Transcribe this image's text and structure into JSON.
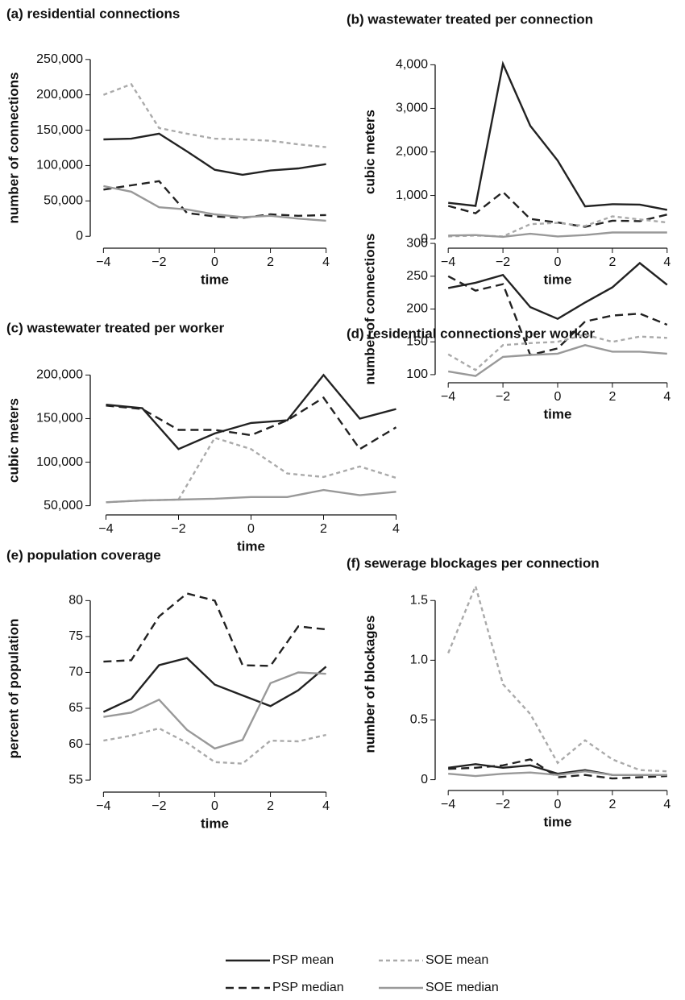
{
  "chart_data": [
    {
      "type": "line",
      "title": "(a) residential connections",
      "xlabel": "time",
      "ylabel": "number of connections",
      "x": [
        -4,
        -3,
        -2,
        -1,
        0,
        1,
        2,
        3,
        4
      ],
      "xlim": [
        -4.3,
        4.3
      ],
      "xticks": [
        {
          "value": -4,
          "label": "−4"
        },
        {
          "value": -2,
          "label": "−2"
        },
        0,
        2,
        4
      ],
      "ylim": [
        -10000,
        260000
      ],
      "yticks": [
        0,
        {
          "value": 50000,
          "label": "50,000"
        },
        {
          "value": 100000,
          "label": "100,000"
        },
        {
          "value": 150000,
          "label": "150,000"
        },
        {
          "value": 200000,
          "label": "200,000"
        },
        {
          "value": 250000,
          "label": "250,000"
        }
      ],
      "series": [
        {
          "name": "PSP mean",
          "color": "#222222",
          "linestyle": "solid",
          "values": [
            137000,
            138000,
            145000,
            120000,
            94000,
            87000,
            93000,
            96000,
            102000
          ]
        },
        {
          "name": "PSP median",
          "color": "#222222",
          "linestyle": "dashed",
          "values": [
            66000,
            72000,
            78000,
            33000,
            28000,
            26000,
            31000,
            29000,
            30000
          ]
        },
        {
          "name": "SOE mean",
          "color": "#aaaaaa",
          "linestyle": "dotted",
          "values": [
            200000,
            215000,
            153000,
            145000,
            138000,
            137000,
            135000,
            130000,
            126000
          ]
        },
        {
          "name": "SOE median",
          "color": "#999999",
          "linestyle": "solid",
          "values": [
            71000,
            63000,
            41000,
            38000,
            31000,
            27000,
            29000,
            25000,
            22000
          ]
        }
      ]
    },
    {
      "type": "line",
      "title": "(b) wastewater treated per connection",
      "xlabel": "time",
      "ylabel": "cubic meters",
      "x": [
        -4,
        -3,
        -2,
        -1,
        0,
        1,
        2,
        3,
        4
      ],
      "xlim": [
        -4.3,
        4.3
      ],
      "xticks": [
        {
          "value": -4,
          "label": "−4"
        },
        {
          "value": -2,
          "label": "−2"
        },
        0,
        2,
        4
      ],
      "ylim": [
        -100,
        4100
      ],
      "yticks": [
        0,
        {
          "value": 1000,
          "label": "1,000"
        },
        {
          "value": 2000,
          "label": "2,000"
        },
        {
          "value": 3000,
          "label": "3,000"
        },
        {
          "value": 4000,
          "label": "4,000"
        }
      ],
      "series": [
        {
          "color": "#222222",
          "linestyle": "solid",
          "values": [
            830,
            760,
            4020,
            2600,
            1800,
            750,
            800,
            790,
            670
          ]
        },
        {
          "color": "#222222",
          "linestyle": "dashed",
          "values": [
            760,
            590,
            1080,
            460,
            380,
            280,
            420,
            410,
            560
          ]
        },
        {
          "color": "#aaaaaa",
          "linestyle": "dotted",
          "values": [
            60,
            80,
            60,
            340,
            370,
            300,
            520,
            450,
            380
          ]
        },
        {
          "color": "#999999",
          "linestyle": "solid",
          "values": [
            80,
            90,
            50,
            120,
            60,
            90,
            150,
            150,
            150
          ]
        }
      ]
    },
    {
      "type": "line",
      "title": "(c) wastewater treated per worker",
      "xlabel": "time",
      "ylabel": "cubic meters",
      "x": [
        -4,
        -3,
        -2,
        -1,
        0,
        1,
        2,
        3,
        4
      ],
      "xlim": [
        -4.3,
        4.3
      ],
      "xticks": [
        {
          "value": -4,
          "label": "−4"
        },
        {
          "value": -2,
          "label": "−2"
        },
        0,
        2,
        4
      ],
      "ylim": [
        45000,
        205000
      ],
      "yticks": [
        {
          "value": 50000,
          "label": "50,000"
        },
        {
          "value": 100000,
          "label": "100,000"
        },
        {
          "value": 150000,
          "label": "150,000"
        },
        {
          "value": 200000,
          "label": "200,000"
        }
      ],
      "series": [
        {
          "color": "#222222",
          "linestyle": "solid",
          "values": [
            166000,
            162000,
            115000,
            133000,
            145000,
            148000,
            200000,
            150000,
            161000
          ]
        },
        {
          "color": "#222222",
          "linestyle": "dashed",
          "values": [
            165000,
            161000,
            137000,
            137000,
            131000,
            148000,
            174000,
            115000,
            140000
          ]
        },
        {
          "color": "#aaaaaa",
          "linestyle": "dotted",
          "values": [
            54000,
            56000,
            57000,
            128000,
            115000,
            87000,
            83000,
            95000,
            82000
          ]
        },
        {
          "color": "#999999",
          "linestyle": "solid",
          "values": [
            54000,
            56000,
            57000,
            58000,
            60000,
            60000,
            68000,
            62000,
            66000
          ]
        }
      ]
    },
    {
      "type": "line",
      "title": "(d) residential connections per worker",
      "xlabel": "time",
      "ylabel": "number of connections",
      "x": [
        -4,
        -3,
        -2,
        -1,
        0,
        1,
        2,
        3,
        4
      ],
      "xlim": [
        -4.3,
        4.3
      ],
      "xticks": [
        {
          "value": -4,
          "label": "−4"
        },
        {
          "value": -2,
          "label": "−2"
        },
        0,
        2,
        4
      ],
      "ylim": [
        95,
        305
      ],
      "yticks": [
        100,
        150,
        200,
        250,
        300
      ],
      "series": [
        {
          "color": "#222222",
          "linestyle": "solid",
          "values": [
            232,
            240,
            252,
            203,
            185,
            210,
            233,
            270,
            237
          ]
        },
        {
          "color": "#222222",
          "linestyle": "dashed",
          "values": [
            250,
            228,
            238,
            130,
            140,
            181,
            190,
            193,
            176
          ]
        },
        {
          "color": "#aaaaaa",
          "linestyle": "dotted",
          "values": [
            131,
            107,
            145,
            148,
            150,
            161,
            150,
            158,
            156
          ]
        },
        {
          "color": "#999999",
          "linestyle": "solid",
          "values": [
            105,
            98,
            127,
            130,
            132,
            145,
            135,
            135,
            132
          ]
        }
      ]
    },
    {
      "type": "line",
      "title": "(e) population coverage",
      "xlabel": "time",
      "ylabel": "percent of population",
      "x": [
        -4,
        -3,
        -2,
        -1,
        0,
        1,
        2,
        3,
        4
      ],
      "xlim": [
        -4.3,
        4.3
      ],
      "xticks": [
        {
          "value": -4,
          "label": "−4"
        },
        {
          "value": -2,
          "label": "−2"
        },
        0,
        2,
        4
      ],
      "ylim": [
        54,
        81.5
      ],
      "yticks": [
        55,
        60,
        65,
        70,
        75,
        80
      ],
      "series": [
        {
          "color": "#222222",
          "linestyle": "solid",
          "values": [
            64.5,
            66.3,
            71,
            72,
            68.3,
            66.8,
            65.3,
            67.5,
            70.8
          ]
        },
        {
          "color": "#222222",
          "linestyle": "dashed",
          "values": [
            71.5,
            71.7,
            77.8,
            81,
            80,
            71,
            70.9,
            76.4,
            76
          ]
        },
        {
          "color": "#aaaaaa",
          "linestyle": "dotted",
          "values": [
            60.5,
            61.2,
            62.2,
            60.2,
            57.5,
            57.3,
            60.5,
            60.4,
            61.3
          ]
        },
        {
          "color": "#999999",
          "linestyle": "solid",
          "values": [
            63.8,
            64.4,
            66.2,
            62,
            59.4,
            60.6,
            68.5,
            70,
            69.8
          ]
        }
      ]
    },
    {
      "type": "line",
      "title": "(f) sewerage blockages per connection",
      "xlabel": "time",
      "ylabel": "number of blockages",
      "x": [
        -4,
        -3,
        -2,
        -1,
        0,
        1,
        2,
        3,
        4
      ],
      "xlim": [
        -4.3,
        4.3
      ],
      "xticks": [
        {
          "value": -4,
          "label": "−4"
        },
        {
          "value": -2,
          "label": "−2"
        },
        0,
        2,
        4
      ],
      "ylim": [
        -0.05,
        1.65
      ],
      "yticks": [
        0,
        0.5,
        {
          "value": 1,
          "label": "1.0"
        },
        1.5
      ],
      "series": [
        {
          "color": "#222222",
          "linestyle": "solid",
          "values": [
            0.1,
            0.13,
            0.1,
            0.12,
            0.05,
            0.08,
            0.04,
            0.04,
            0.04
          ]
        },
        {
          "color": "#222222",
          "linestyle": "dashed",
          "values": [
            0.09,
            0.1,
            0.12,
            0.17,
            0.02,
            0.04,
            0.01,
            0.02,
            0.03
          ]
        },
        {
          "color": "#aaaaaa",
          "linestyle": "dotted",
          "values": [
            1.06,
            1.62,
            0.8,
            0.55,
            0.14,
            0.33,
            0.17,
            0.08,
            0.07
          ]
        },
        {
          "color": "#999999",
          "linestyle": "solid",
          "values": [
            0.05,
            0.03,
            0.05,
            0.06,
            0.04,
            0.07,
            0.04,
            0.04,
            0.04
          ]
        }
      ]
    }
  ]
}
